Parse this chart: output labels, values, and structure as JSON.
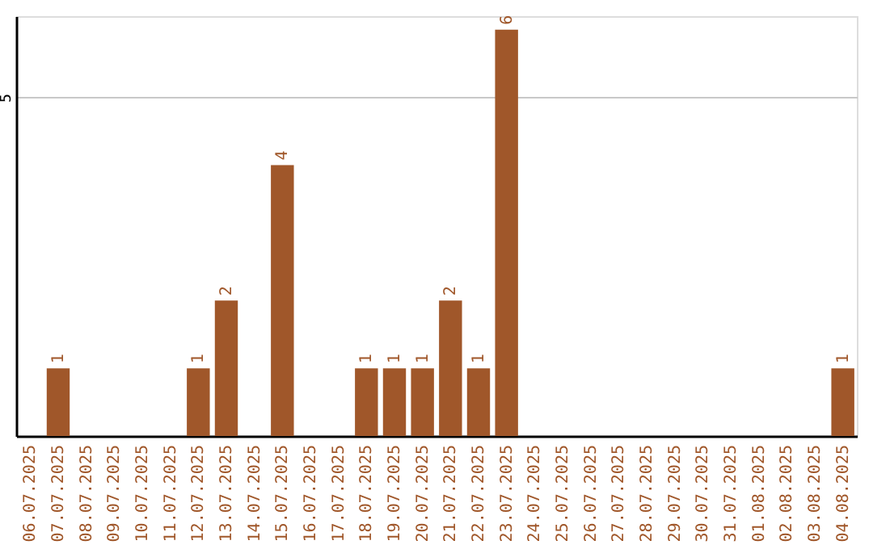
{
  "chart_data": {
    "type": "bar",
    "categories": [
      "06.07.2025",
      "07.07.2025",
      "08.07.2025",
      "09.07.2025",
      "10.07.2025",
      "11.07.2025",
      "12.07.2025",
      "13.07.2025",
      "14.07.2025",
      "15.07.2025",
      "16.07.2025",
      "17.07.2025",
      "18.07.2025",
      "19.07.2025",
      "20.07.2025",
      "21.07.2025",
      "22.07.2025",
      "23.07.2025",
      "24.07.2025",
      "25.07.2025",
      "26.07.2025",
      "27.07.2025",
      "28.07.2025",
      "29.07.2025",
      "30.07.2025",
      "31.07.2025",
      "01.08.2025",
      "02.08.2025",
      "03.08.2025",
      "04.08.2025"
    ],
    "values": [
      0,
      1,
      0,
      0,
      0,
      0,
      1,
      2,
      0,
      4,
      0,
      0,
      1,
      1,
      1,
      2,
      1,
      6,
      0,
      0,
      0,
      0,
      0,
      0,
      0,
      0,
      0,
      0,
      0,
      1
    ],
    "value_labels": [
      null,
      "1",
      null,
      null,
      null,
      null,
      "1",
      "2",
      null,
      "4",
      null,
      null,
      "1",
      "1",
      "1",
      "2",
      "1",
      "6",
      null,
      null,
      null,
      null,
      null,
      null,
      null,
      null,
      null,
      null,
      null,
      "1"
    ],
    "color": "#a0572a",
    "ylim": [
      0,
      6.2
    ],
    "yticks": [
      5
    ],
    "grid": "y"
  }
}
